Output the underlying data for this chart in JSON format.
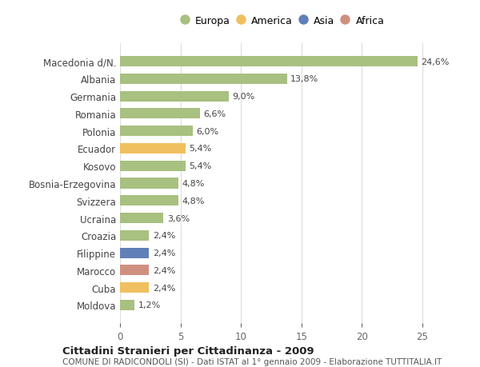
{
  "categories": [
    "Macedonia d/N.",
    "Albania",
    "Germania",
    "Romania",
    "Polonia",
    "Ecuador",
    "Kosovo",
    "Bosnia-Erzegovina",
    "Svizzera",
    "Ucraina",
    "Croazia",
    "Filippine",
    "Marocco",
    "Cuba",
    "Moldova"
  ],
  "values": [
    24.6,
    13.8,
    9.0,
    6.6,
    6.0,
    5.4,
    5.4,
    4.8,
    4.8,
    3.6,
    2.4,
    2.4,
    2.4,
    2.4,
    1.2
  ],
  "labels": [
    "24,6%",
    "13,8%",
    "9,0%",
    "6,6%",
    "6,0%",
    "5,4%",
    "5,4%",
    "4,8%",
    "4,8%",
    "3,6%",
    "2,4%",
    "2,4%",
    "2,4%",
    "2,4%",
    "1,2%"
  ],
  "colors": [
    "#a8c080",
    "#a8c080",
    "#a8c080",
    "#a8c080",
    "#a8c080",
    "#f0c060",
    "#a8c080",
    "#a8c080",
    "#a8c080",
    "#a8c080",
    "#a8c080",
    "#6080b8",
    "#d09080",
    "#f0c060",
    "#a8c080"
  ],
  "legend_labels": [
    "Europa",
    "America",
    "Asia",
    "Africa"
  ],
  "legend_colors": [
    "#a8c080",
    "#f0c060",
    "#6080b8",
    "#d09080"
  ],
  "title": "Cittadini Stranieri per Cittadinanza - 2009",
  "subtitle": "COMUNE DI RADICONDOLI (SI) - Dati ISTAT al 1° gennaio 2009 - Elaborazione TUTTITALIA.IT",
  "xlim": [
    0,
    27
  ],
  "xticks": [
    0,
    5,
    10,
    15,
    20,
    25
  ],
  "background_color": "#ffffff",
  "grid_color": "#dddddd"
}
